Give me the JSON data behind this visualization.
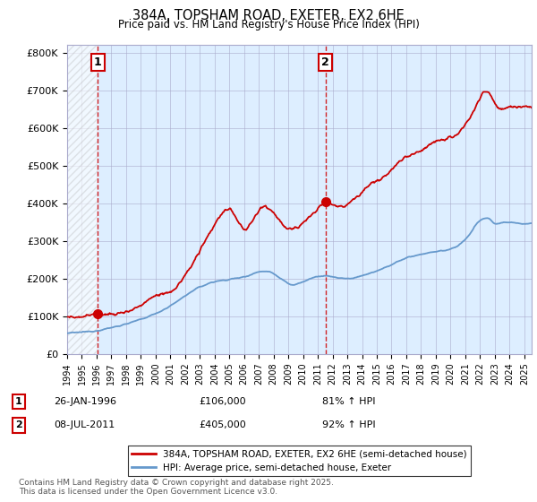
{
  "title1": "384A, TOPSHAM ROAD, EXETER, EX2 6HE",
  "title2": "Price paid vs. HM Land Registry's House Price Index (HPI)",
  "ylim": [
    0,
    820000
  ],
  "yticks": [
    0,
    100000,
    200000,
    300000,
    400000,
    500000,
    600000,
    700000,
    800000
  ],
  "ytick_labels": [
    "£0",
    "£100K",
    "£200K",
    "£300K",
    "£400K",
    "£500K",
    "£600K",
    "£700K",
    "£800K"
  ],
  "property_color": "#cc0000",
  "hpi_color": "#6699cc",
  "sale1_date": "26-JAN-1996",
  "sale1_price": "£106,000",
  "sale1_hpi": "81% ↑ HPI",
  "sale1_year": 1996.07,
  "sale1_value": 106000,
  "sale2_date": "08-JUL-2011",
  "sale2_price": "£405,000",
  "sale2_hpi": "92% ↑ HPI",
  "sale2_year": 2011.52,
  "sale2_value": 405000,
  "legend_property": "384A, TOPSHAM ROAD, EXETER, EX2 6HE (semi-detached house)",
  "legend_hpi": "HPI: Average price, semi-detached house, Exeter",
  "footer": "Contains HM Land Registry data © Crown copyright and database right 2025.\nThis data is licensed under the Open Government Licence v3.0.",
  "background_color": "#ddeeff",
  "grid_color": "#aaaacc",
  "xmin": 1994,
  "xmax": 2025.5
}
